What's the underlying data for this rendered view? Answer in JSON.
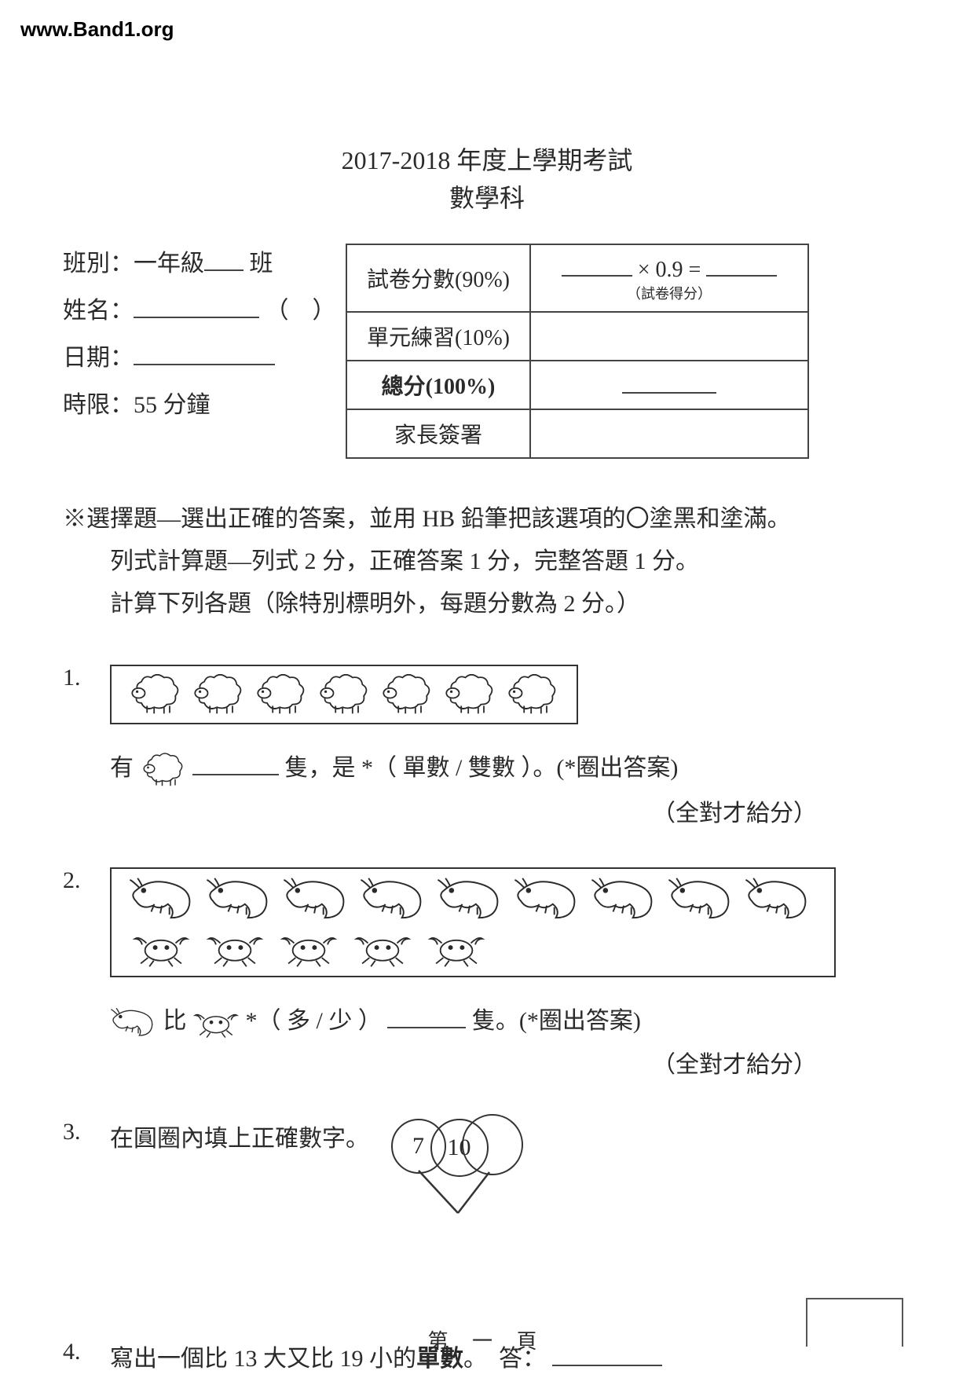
{
  "watermark": "www.Band1.org",
  "title_line1": "2017-2018 年度上學期考試",
  "title_line2": "數學科",
  "info": {
    "class_label": "班別：一年級",
    "class_suffix": "班",
    "name_label": "姓名：",
    "name_paren": "（　）",
    "date_label": "日期：",
    "time_label": "時限：55 分鐘"
  },
  "score": {
    "row1_label": "試卷分數(90%)",
    "row1_formula": "× 0.9 =",
    "row1_note": "（試卷得分）",
    "row2_label": "單元練習(10%)",
    "row3_label": "總分(100%)",
    "row4_label": "家長簽署"
  },
  "instructions": {
    "line1": "※選擇題—選出正確的答案，並用 HB 鉛筆把該選項的〇塗黑和塗滿。",
    "line2": "列式計算題—列式 2 分，正確答案 1 分，完整答題 1 分。",
    "line3": "計算下列各題（除特別標明外，每題分數為 2 分。）"
  },
  "q1": {
    "num": "1.",
    "sheep_count": 7,
    "text_a": "有",
    "text_b": "隻，是 *（ 單數 / 雙數 ）。(*圈出答案)",
    "note": "（全對才給分）"
  },
  "q2": {
    "num": "2.",
    "shrimp_count": 9,
    "crab_count": 5,
    "text_a": "比",
    "text_b": "*（ 多 / 少 ）",
    "text_c": "隻。(*圈出答案)",
    "note": "（全對才給分）"
  },
  "q3": {
    "num": "3.",
    "text": "在圓圈內填上正確數字。",
    "val_left": "7",
    "val_bottom": "10"
  },
  "q4": {
    "num": "4.",
    "text": "寫出一個比 13 大又比 19 小的單數。　答：",
    "bold_word": "單數"
  },
  "footer": "第 一 頁",
  "style": {
    "sheep_stroke": "#2a2a2a",
    "box_stroke": "#333333",
    "shrimp_stroke": "#2a2a2a",
    "crab_stroke": "#2a2a2a"
  }
}
